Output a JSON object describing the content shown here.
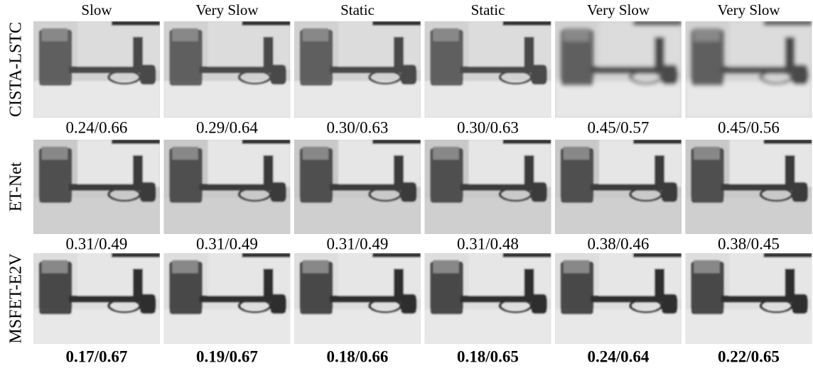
{
  "columns": [
    "Slow",
    "Very Slow",
    "Static",
    "Static",
    "Very Slow",
    "Very Slow"
  ],
  "rows": [
    {
      "label": "CISTA-LSTC",
      "metrics": [
        "0.24/0.66",
        "0.29/0.64",
        "0.30/0.63",
        "0.30/0.63",
        "0.45/0.57",
        "0.45/0.56"
      ]
    },
    {
      "label": "ET-Net",
      "metrics": [
        "0.31/0.49",
        "0.31/0.49",
        "0.31/0.49",
        "0.31/0.48",
        "0.38/0.46",
        "0.38/0.45"
      ]
    },
    {
      "label": "MSFET-E2V",
      "metrics": [
        "0.17/0.67",
        "0.19/0.67",
        "0.18/0.66",
        "0.18/0.65",
        "0.24/0.64",
        "0.22/0.65"
      ]
    }
  ]
}
